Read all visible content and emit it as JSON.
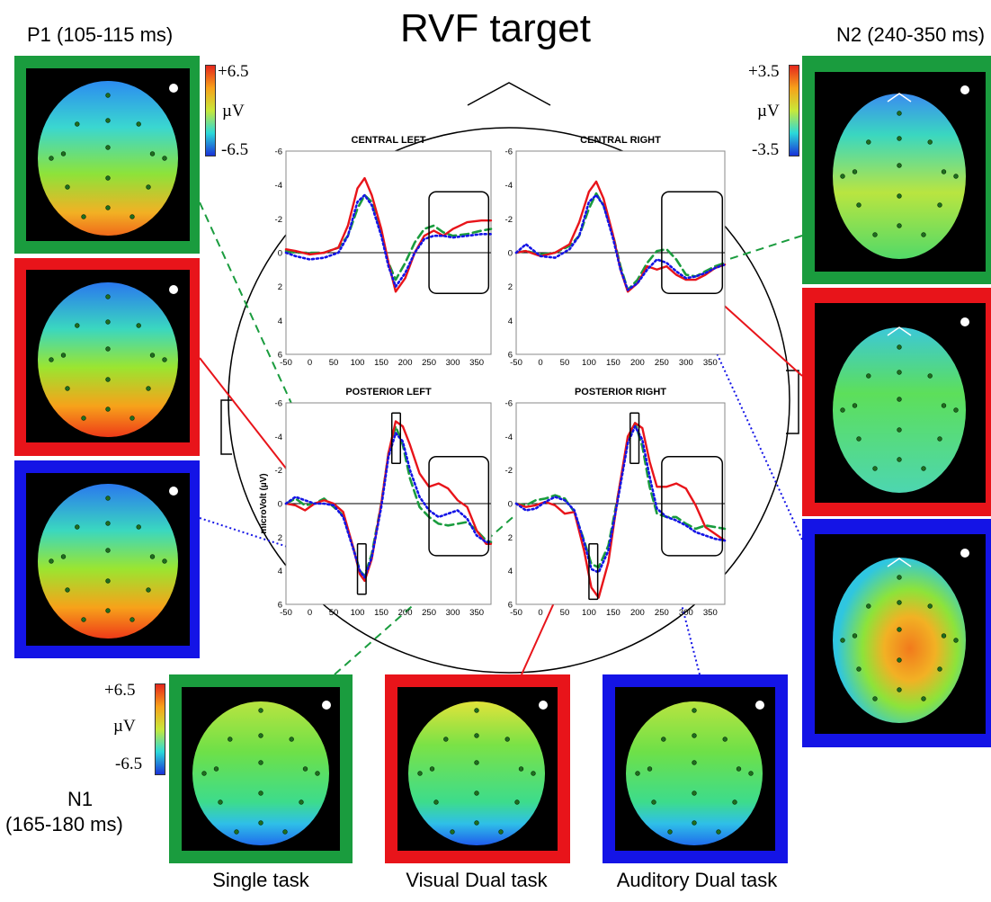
{
  "header": {
    "title": "RVF target"
  },
  "components": {
    "p1": {
      "label": "P1 (105-115 ms)"
    },
    "n2": {
      "label": "N2 (240-350 ms)"
    },
    "n1": {
      "label_line1": "N1",
      "label_line2": "(165-180 ms)"
    }
  },
  "colorbars": {
    "p1": {
      "max": "+6.5",
      "unit": "µV",
      "min": "-6.5"
    },
    "n2": {
      "max": "+3.5",
      "unit": "µV",
      "min": "-3.5"
    },
    "n1": {
      "max": "+6.5",
      "unit": "µV",
      "min": "-6.5"
    }
  },
  "conditions": [
    {
      "name": "Single task",
      "color": "#1a9c3e"
    },
    {
      "name": "Visual Dual task",
      "color": "#e8141a"
    },
    {
      "name": "Auditory Dual task",
      "color": "#1414e6"
    }
  ],
  "chart_data": [
    {
      "type": "line",
      "title": "CENTRAL LEFT",
      "x_ticks": [
        "-50",
        "0",
        "50",
        "100",
        "150",
        "200",
        "250",
        "300",
        "350"
      ],
      "y_ticks": [
        "-6",
        "-4",
        "-2",
        "0",
        "2",
        "4",
        "6"
      ],
      "xlim": [
        -50,
        380
      ],
      "ylim": [
        -6,
        6
      ],
      "y_inverted": true,
      "ylabel": "",
      "series": [
        {
          "color": "#1a9c3e",
          "style": "dashed",
          "x": [
            -50,
            -30,
            0,
            30,
            60,
            80,
            100,
            115,
            130,
            150,
            165,
            180,
            200,
            220,
            240,
            260,
            280,
            300,
            330,
            360,
            380
          ],
          "y": [
            -0.1,
            0,
            0,
            0,
            -0.3,
            -1,
            -2.6,
            -3.4,
            -3,
            -1.2,
            0.6,
            1.6,
            0.6,
            -0.6,
            -1.4,
            -1.6,
            -1.2,
            -1,
            -1.1,
            -1.3,
            -1.4
          ]
        },
        {
          "color": "#e8141a",
          "style": "solid",
          "x": [
            -50,
            -30,
            0,
            30,
            60,
            80,
            100,
            115,
            130,
            150,
            165,
            180,
            200,
            220,
            240,
            260,
            280,
            300,
            330,
            360,
            380
          ],
          "y": [
            -0.2,
            -0.1,
            0.1,
            0,
            -0.3,
            -1.6,
            -3.8,
            -4.4,
            -3.4,
            -1.4,
            0.6,
            2.3,
            1.5,
            0,
            -1,
            -1.3,
            -1,
            -1.4,
            -1.8,
            -1.9,
            -1.9
          ]
        },
        {
          "color": "#1414e6",
          "style": "dotted",
          "x": [
            -50,
            -30,
            0,
            30,
            60,
            80,
            100,
            115,
            130,
            150,
            165,
            180,
            200,
            220,
            240,
            260,
            280,
            300,
            330,
            360,
            380
          ],
          "y": [
            0,
            0.2,
            0.4,
            0.3,
            0,
            -1,
            -3,
            -3.4,
            -2.8,
            -1,
            0.8,
            2,
            1.2,
            0,
            -0.8,
            -1,
            -1,
            -0.9,
            -1,
            -1.1,
            -1.1
          ]
        }
      ],
      "annotation_boxes": [
        {
          "x": [
            250,
            375
          ],
          "y": [
            -3.6,
            2.4
          ]
        }
      ]
    },
    {
      "type": "line",
      "title": "CENTRAL RIGHT",
      "x_ticks": [
        "-50",
        "0",
        "50",
        "100",
        "150",
        "200",
        "250",
        "300",
        "350"
      ],
      "y_ticks": [
        "-6",
        "-4",
        "-2",
        "0",
        "2",
        "4",
        "6"
      ],
      "xlim": [
        -50,
        380
      ],
      "ylim": [
        -6,
        6
      ],
      "y_inverted": true,
      "ylabel": "",
      "series": [
        {
          "color": "#1a9c3e",
          "style": "dashed",
          "x": [
            -50,
            -30,
            0,
            30,
            60,
            80,
            100,
            115,
            130,
            150,
            165,
            180,
            200,
            220,
            240,
            260,
            280,
            300,
            320,
            340,
            360,
            380
          ],
          "y": [
            0,
            -0.1,
            0.1,
            0,
            -0.4,
            -1,
            -2.6,
            -3.5,
            -2.8,
            -1,
            0.8,
            2.2,
            1.6,
            0.6,
            -0.1,
            -0.2,
            0.4,
            1.3,
            1.4,
            1.1,
            0.8,
            0.6
          ]
        },
        {
          "color": "#e8141a",
          "style": "solid",
          "x": [
            -50,
            -30,
            0,
            30,
            60,
            80,
            100,
            115,
            130,
            150,
            165,
            180,
            200,
            220,
            240,
            260,
            280,
            300,
            320,
            340,
            360,
            380
          ],
          "y": [
            0,
            -0.1,
            0.2,
            0,
            -0.5,
            -1.8,
            -3.6,
            -4.2,
            -3.2,
            -1,
            1,
            2.3,
            1.8,
            0.8,
            1,
            0.8,
            1.3,
            1.6,
            1.6,
            1.3,
            0.9,
            0.7
          ]
        },
        {
          "color": "#1414e6",
          "style": "dotted",
          "x": [
            -50,
            -30,
            0,
            30,
            60,
            80,
            100,
            115,
            130,
            150,
            165,
            180,
            200,
            220,
            240,
            260,
            280,
            300,
            320,
            340,
            360,
            380
          ],
          "y": [
            0,
            -0.5,
            0.2,
            0.3,
            -0.2,
            -1,
            -3,
            -3.4,
            -2.8,
            -0.8,
            1,
            2.2,
            1.8,
            1,
            0.4,
            0.6,
            1.1,
            1.5,
            1.4,
            1.2,
            0.9,
            0.7
          ]
        }
      ],
      "annotation_boxes": [
        {
          "x": [
            250,
            375
          ],
          "y": [
            -3.6,
            2.4
          ]
        }
      ]
    },
    {
      "type": "line",
      "title": "POSTERIOR LEFT",
      "x_ticks": [
        "-50",
        "0",
        "50",
        "100",
        "150",
        "200",
        "250",
        "300",
        "350"
      ],
      "y_ticks": [
        "-6",
        "-4",
        "-2",
        "0",
        "2",
        "4",
        "6"
      ],
      "xlim": [
        -50,
        380
      ],
      "ylim": [
        -6,
        6
      ],
      "y_inverted": true,
      "ylabel": "microVolt  (µV)",
      "series": [
        {
          "color": "#1a9c3e",
          "style": "dashed",
          "x": [
            -50,
            -30,
            -10,
            10,
            30,
            50,
            70,
            90,
            105,
            115,
            130,
            150,
            165,
            180,
            195,
            210,
            230,
            250,
            270,
            290,
            310,
            330,
            350,
            370,
            380
          ],
          "y": [
            0,
            -0.3,
            0.1,
            0,
            -0.3,
            0.2,
            0.7,
            2.5,
            4,
            4.3,
            3,
            0,
            -3,
            -4.6,
            -3.5,
            -1.5,
            0.2,
            0.8,
            1.2,
            1.3,
            1.2,
            1.1,
            1.6,
            2.2,
            2.3
          ]
        },
        {
          "color": "#e8141a",
          "style": "solid",
          "x": [
            -50,
            -30,
            -10,
            10,
            30,
            50,
            70,
            90,
            105,
            115,
            130,
            150,
            165,
            180,
            195,
            210,
            230,
            250,
            270,
            290,
            310,
            330,
            350,
            370,
            380
          ],
          "y": [
            0,
            0.1,
            0.4,
            0,
            -0.2,
            0,
            0.5,
            2.5,
            4.2,
            4.6,
            3.3,
            0,
            -3,
            -4.9,
            -4.6,
            -3.5,
            -1.8,
            -1,
            -1.2,
            -0.9,
            -0.2,
            0.2,
            1.6,
            2.4,
            2.4
          ]
        },
        {
          "color": "#1414e6",
          "style": "dotted",
          "x": [
            -50,
            -30,
            -10,
            10,
            30,
            50,
            70,
            90,
            105,
            115,
            130,
            150,
            165,
            180,
            195,
            210,
            230,
            250,
            270,
            290,
            310,
            330,
            350,
            370,
            380
          ],
          "y": [
            0,
            -0.4,
            -0.2,
            0,
            0,
            0.1,
            0.8,
            2.6,
            4,
            4.4,
            3.2,
            0.2,
            -2.8,
            -4.2,
            -3.7,
            -2,
            -0.4,
            0.4,
            0.8,
            0.6,
            0.4,
            0.9,
            1.9,
            2.3,
            2.3
          ]
        }
      ],
      "annotation_boxes": [
        {
          "x": [
            100,
            118
          ],
          "y": [
            2.4,
            5.4
          ]
        },
        {
          "x": [
            172,
            190
          ],
          "y": [
            -5.4,
            -2.4
          ]
        },
        {
          "x": [
            250,
            375
          ],
          "y": [
            -2.8,
            3.1
          ]
        }
      ]
    },
    {
      "type": "line",
      "title": "POSTERIOR RIGHT",
      "x_ticks": [
        "-50",
        "0",
        "50",
        "100",
        "150",
        "200",
        "250",
        "300",
        "350"
      ],
      "y_ticks": [
        "-6",
        "-4",
        "-2",
        "0",
        "2",
        "4",
        "6"
      ],
      "xlim": [
        -50,
        380
      ],
      "ylim": [
        -6,
        6
      ],
      "y_inverted": true,
      "ylabel": "",
      "series": [
        {
          "color": "#1a9c3e",
          "style": "dashed",
          "x": [
            -50,
            -30,
            -10,
            10,
            30,
            50,
            70,
            90,
            105,
            120,
            140,
            160,
            180,
            195,
            210,
            225,
            240,
            260,
            280,
            300,
            320,
            340,
            360,
            380
          ],
          "y": [
            0,
            0.1,
            -0.2,
            -0.3,
            -0.5,
            -0.3,
            0.5,
            2.2,
            3.6,
            3.8,
            2.5,
            -0.5,
            -3.8,
            -4.8,
            -3.4,
            -1,
            0.6,
            0.8,
            0.8,
            1.2,
            1.5,
            1.3,
            1.4,
            1.5
          ]
        },
        {
          "color": "#e8141a",
          "style": "solid",
          "x": [
            -50,
            -30,
            -10,
            10,
            30,
            50,
            70,
            90,
            105,
            120,
            140,
            160,
            180,
            195,
            210,
            225,
            240,
            260,
            280,
            300,
            320,
            340,
            360,
            380
          ],
          "y": [
            0,
            0.2,
            0.1,
            -0.1,
            0.1,
            0.6,
            0.5,
            2.8,
            5,
            5.6,
            3.5,
            -0.5,
            -4,
            -4.8,
            -4.5,
            -2.5,
            -1,
            -1,
            -1.2,
            -0.9,
            0.1,
            1.4,
            1.8,
            2.2
          ]
        },
        {
          "color": "#1414e6",
          "style": "dotted",
          "x": [
            -50,
            -30,
            -10,
            10,
            30,
            50,
            70,
            90,
            105,
            120,
            140,
            160,
            180,
            195,
            210,
            225,
            240,
            260,
            280,
            300,
            320,
            340,
            360,
            380
          ],
          "y": [
            0,
            0.4,
            0.3,
            -0.1,
            -0.4,
            -0.2,
            0.4,
            2.3,
            3.9,
            4.1,
            2.8,
            -0.3,
            -3.6,
            -4.6,
            -3.8,
            -1.6,
            0.3,
            0.8,
            1,
            1.3,
            1.7,
            1.9,
            2.1,
            2.2
          ]
        }
      ],
      "annotation_boxes": [
        {
          "x": [
            100,
            118
          ],
          "y": [
            2.4,
            5.7
          ]
        },
        {
          "x": [
            185,
            203
          ],
          "y": [
            -5.4,
            -2.4
          ]
        },
        {
          "x": [
            250,
            375
          ],
          "y": [
            -2.8,
            3.1
          ]
        }
      ]
    }
  ]
}
